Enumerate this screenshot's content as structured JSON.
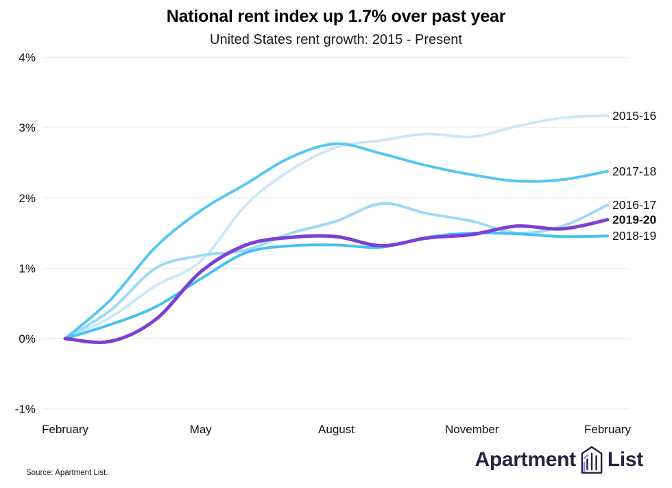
{
  "header": {
    "title": "National rent index up 1.7% over past year",
    "subtitle": "United States rent growth: 2015 - Present"
  },
  "chart_data": {
    "type": "line",
    "title": "National rent index up 1.7% over past year",
    "subtitle": "United States rent growth: 2015 - Present",
    "unit": "%",
    "grid": "horizontal-only",
    "legend_position": "right-inline-labels",
    "ylim": [
      -1,
      4
    ],
    "y_ticks": [
      4,
      3,
      2,
      1,
      0,
      -1
    ],
    "x_months_span": 12,
    "x_tick_labels": [
      {
        "label": "February",
        "month": 0
      },
      {
        "label": "May",
        "month": 3
      },
      {
        "label": "August",
        "month": 6
      },
      {
        "label": "November",
        "month": 9
      },
      {
        "label": "February",
        "month": 12
      }
    ],
    "series": [
      {
        "name": "2015-16",
        "color": "#cbe7f9",
        "emphasis": false,
        "values": [
          0,
          0.3,
          0.75,
          1.1,
          1.9,
          2.4,
          2.72,
          2.82,
          2.91,
          2.87,
          3.02,
          3.14,
          3.17
        ]
      },
      {
        "name": "2016-17",
        "color": "#9edaf6",
        "emphasis": false,
        "values": [
          0,
          0.4,
          1.0,
          1.18,
          1.26,
          1.5,
          1.67,
          1.92,
          1.78,
          1.67,
          1.5,
          1.6,
          1.9
        ]
      },
      {
        "name": "2017-18",
        "color": "#57c7f1",
        "emphasis": false,
        "values": [
          0,
          0.55,
          1.3,
          1.82,
          2.2,
          2.58,
          2.77,
          2.63,
          2.46,
          2.33,
          2.24,
          2.26,
          2.38
        ]
      },
      {
        "name": "2018-19",
        "color": "#45c2f0",
        "emphasis": false,
        "values": [
          0,
          0.2,
          0.45,
          0.85,
          1.22,
          1.32,
          1.33,
          1.3,
          1.44,
          1.5,
          1.49,
          1.45,
          1.46
        ]
      },
      {
        "name": "2019-20",
        "color": "#7d3fd4",
        "emphasis": true,
        "values": [
          0,
          -0.04,
          0.27,
          0.95,
          1.33,
          1.44,
          1.45,
          1.32,
          1.43,
          1.48,
          1.6,
          1.56,
          1.69
        ]
      }
    ]
  },
  "footer": {
    "source": "Source: Apartment List.",
    "logo": {
      "word1": "Apartment",
      "word2": "List"
    }
  }
}
